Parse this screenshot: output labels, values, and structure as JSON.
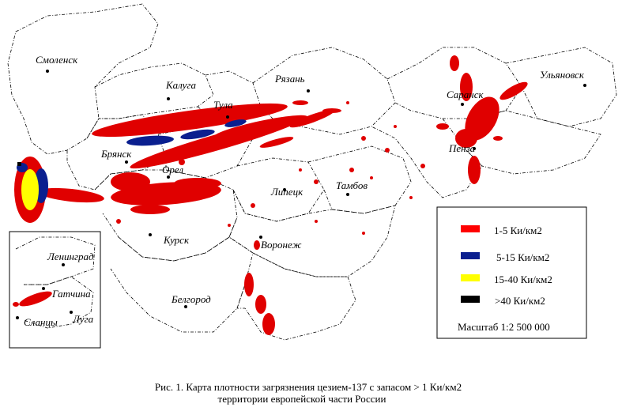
{
  "cities": [
    {
      "label": "Смоленск"
    },
    {
      "label": "Калуга"
    },
    {
      "label": "Тула"
    },
    {
      "label": "Рязань"
    },
    {
      "label": "Саранск"
    },
    {
      "label": "Ульяновск"
    },
    {
      "label": "Брянск"
    },
    {
      "label": "Орел"
    },
    {
      "label": "Пенза"
    },
    {
      "label": "Липецк"
    },
    {
      "label": "Тамбов"
    },
    {
      "label": "Курск"
    },
    {
      "label": "Воронеж"
    },
    {
      "label": "Белгород"
    }
  ],
  "inset": {
    "cities": [
      {
        "label": "Ленинград"
      },
      {
        "label": "Гатчина"
      },
      {
        "label": "Сланцы"
      },
      {
        "label": "Луга"
      }
    ]
  },
  "legend": {
    "items": [
      {
        "label": "1-5 Ки/км2",
        "color": "#ff0000"
      },
      {
        "label": "5-15 Ки/км2",
        "color": "#0a1f8f"
      },
      {
        "label": "15-40 Ки/км2",
        "color": "#ffff00"
      },
      {
        "label": ">40 Ки/км2",
        "color": "#000000"
      }
    ],
    "scale": "Масштаб 1:2 500 000"
  },
  "caption": {
    "line1": "Рис. 1. Карта плотности загрязнения цезием-137   с запасом  > 1 Ки/км2",
    "line2": "территории европейской части России"
  }
}
